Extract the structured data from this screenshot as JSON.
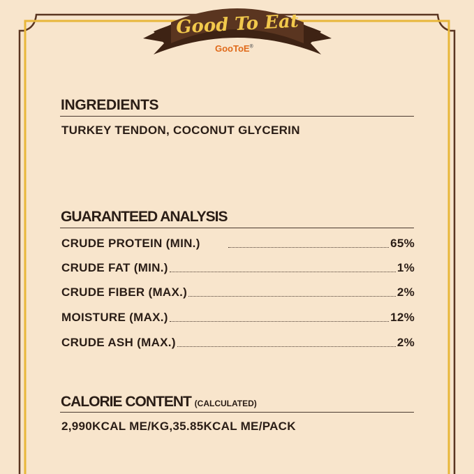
{
  "banner": {
    "title": "Good To Eat",
    "brand": "GooToE",
    "registered": "®"
  },
  "ingredients": {
    "heading": "INGREDIENTS",
    "text": "TURKEY TENDON, COCONUT GLYCERIN"
  },
  "analysis": {
    "heading": "GUARANTEED ANALYSIS",
    "rows": [
      {
        "label": "CRUDE PROTEIN (MIN.)",
        "value": "65%"
      },
      {
        "label": "CRUDE FAT (MIN.)",
        "value": "1%"
      },
      {
        "label": "CRUDE FIBER (MAX.)",
        "value": "2%"
      },
      {
        "label": "MOISTURE (MAX.)",
        "value": "12%"
      },
      {
        "label": "CRUDE ASH (MAX.)",
        "value": "2%"
      }
    ]
  },
  "calorie": {
    "heading": "CALORIE CONTENT",
    "note": "(CALCULATED)",
    "text": "2,990KCAL ME/KG,35.85KCAL ME/PACK"
  },
  "colors": {
    "background": "#f8e5cc",
    "brown": "#5a3520",
    "gold": "#e8b73a",
    "banner": "#4e2e1c",
    "banner_text": "#f2c94c",
    "brand": "#e06a1a"
  }
}
